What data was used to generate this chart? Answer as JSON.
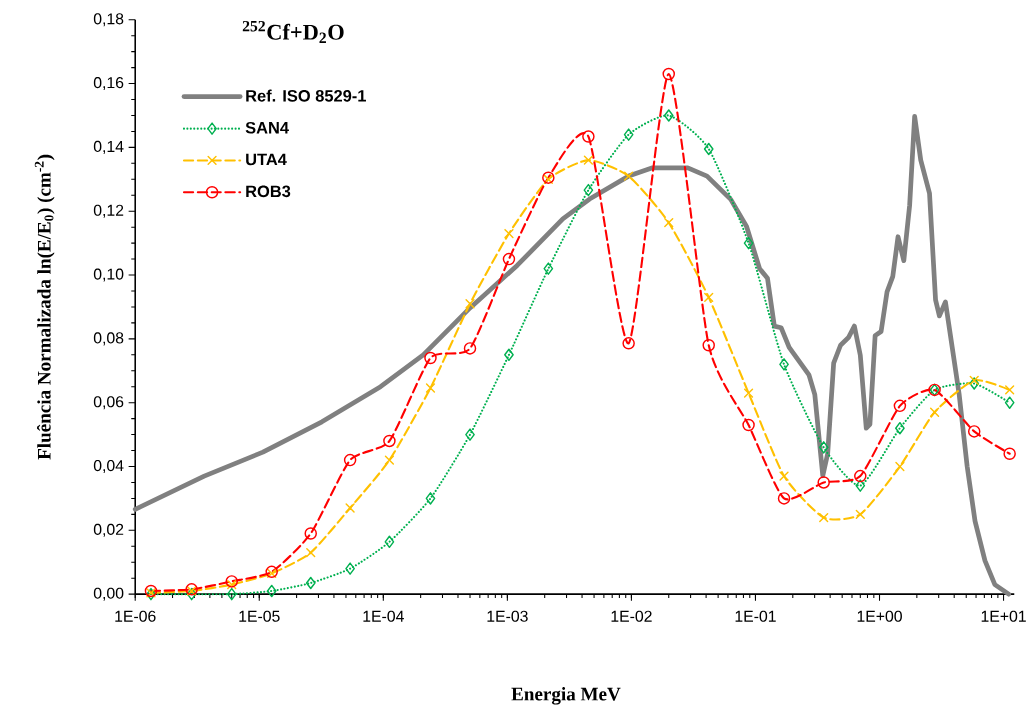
{
  "chart_data": {
    "type": "line",
    "title": "$^{252}$Cf+D$_{2}$O",
    "xlabel": "Energia MeV",
    "ylabel": "Fluência Normalizada ln(E/E$_{0}$) (cm$^{-2}$)",
    "log": "x",
    "grid": false,
    "legend": "top left",
    "xlim": [
      1e-06,
      12.2
    ],
    "ylim": [
      0,
      0.18
    ],
    "xticks": [
      {
        "value": 1e-06,
        "label": "1E-06"
      },
      {
        "value": 1e-05,
        "label": "1E-05"
      },
      {
        "value": 0.0001,
        "label": "1E-04"
      },
      {
        "value": 0.001,
        "label": "1E-03"
      },
      {
        "value": 0.01,
        "label": "1E-02"
      },
      {
        "value": 0.1,
        "label": "1E-01"
      },
      {
        "value": 1,
        "label": "1E+00"
      },
      {
        "value": 10,
        "label": "1E+01"
      }
    ],
    "yticks": [
      {
        "value": 0,
        "label": "0,00"
      },
      {
        "value": 0.02,
        "label": "0,02"
      },
      {
        "value": 0.04,
        "label": "0,04"
      },
      {
        "value": 0.06,
        "label": "0,06"
      },
      {
        "value": 0.08,
        "label": "0,08"
      },
      {
        "value": 0.1,
        "label": "0,10"
      },
      {
        "value": 0.12,
        "label": "0,12"
      },
      {
        "value": 0.14,
        "label": "0,14"
      },
      {
        "value": 0.16,
        "label": "0,16"
      },
      {
        "value": 0.18,
        "label": "0,18"
      }
    ],
    "series": [
      {
        "name": "Ref. ISO 8529-1",
        "color": "#808080",
        "marker": "none",
        "line_style": "solid",
        "x": [
          1e-06,
          3.6e-06,
          1.07e-05,
          3.2e-05,
          9.5e-05,
          0.00021,
          0.0005,
          0.0012,
          0.0028,
          0.0046,
          0.0095,
          0.0148,
          0.0285,
          0.0407,
          0.0632,
          0.0848,
          0.108,
          0.125,
          0.142,
          0.161,
          0.187,
          0.27,
          0.301,
          0.349,
          0.382,
          0.427,
          0.485,
          0.562,
          0.627,
          0.7,
          0.782,
          0.837,
          0.922,
          1.03,
          1.15,
          1.28,
          1.41,
          1.57,
          1.75,
          1.92,
          2.15,
          2.53,
          2.83,
          3.04,
          3.4,
          3.94,
          4.39,
          5.09,
          5.89,
          7.08,
          8.51,
          11.0
        ],
        "values": [
          0.0266,
          0.037,
          0.0445,
          0.054,
          0.065,
          0.075,
          0.0897,
          0.103,
          0.1176,
          0.1238,
          0.131,
          0.1336,
          0.1336,
          0.131,
          0.1237,
          0.1152,
          0.102,
          0.099,
          0.084,
          0.0835,
          0.0773,
          0.0687,
          0.0625,
          0.0371,
          0.044,
          0.0724,
          0.078,
          0.0804,
          0.084,
          0.0749,
          0.052,
          0.0532,
          0.081,
          0.0823,
          0.0947,
          0.0996,
          0.112,
          0.1045,
          0.1219,
          0.1497,
          0.136,
          0.1256,
          0.0922,
          0.0872,
          0.0916,
          0.0749,
          0.0625,
          0.04,
          0.0229,
          0.0105,
          0.003,
          0
        ]
      },
      {
        "name": "SAN4",
        "color": "#00b050",
        "marker": "diamond",
        "line_style": "dotted",
        "x": [
          1.34e-06,
          2.85e-06,
          6e-06,
          1.26e-05,
          2.6e-05,
          5.4e-05,
          0.000112,
          0.00024,
          0.0005,
          0.00103,
          0.00214,
          0.0045,
          0.0095,
          0.02,
          0.042,
          0.088,
          0.17,
          0.355,
          0.7,
          1.46,
          2.78,
          5.8,
          11.2
        ],
        "values": [
          0,
          0,
          0,
          0.001,
          0.0035,
          0.008,
          0.0164,
          0.03,
          0.05,
          0.075,
          0.102,
          0.1266,
          0.144,
          0.15,
          0.1395,
          0.11,
          0.072,
          0.046,
          0.034,
          0.052,
          0.064,
          0.066,
          0.06
        ]
      },
      {
        "name": "UTA4",
        "color": "#ffc000",
        "marker": "cross",
        "line_style": "dashed",
        "x": [
          1.34e-06,
          2.85e-06,
          6e-06,
          1.26e-05,
          2.6e-05,
          5.4e-05,
          0.000112,
          0.00024,
          0.0005,
          0.00103,
          0.00214,
          0.0045,
          0.0095,
          0.02,
          0.042,
          0.088,
          0.17,
          0.355,
          0.7,
          1.46,
          2.78,
          5.8,
          11.2
        ],
        "values": [
          0.0004,
          0.001,
          0.003,
          0.0065,
          0.013,
          0.027,
          0.042,
          0.0646,
          0.091,
          0.113,
          0.13,
          0.136,
          0.131,
          0.1164,
          0.093,
          0.063,
          0.037,
          0.024,
          0.025,
          0.04,
          0.057,
          0.067,
          0.064
        ]
      },
      {
        "name": "ROB3",
        "color": "#ff0000",
        "marker": "circle",
        "line_style": "dashed",
        "x": [
          1.34e-06,
          2.85e-06,
          6e-06,
          1.26e-05,
          2.6e-05,
          5.4e-05,
          0.000112,
          0.00024,
          0.0005,
          0.00103,
          0.00214,
          0.0045,
          0.0095,
          0.02,
          0.042,
          0.088,
          0.17,
          0.355,
          0.7,
          1.46,
          2.78,
          5.8,
          11.2
        ],
        "values": [
          0.001,
          0.0015,
          0.004,
          0.007,
          0.019,
          0.042,
          0.048,
          0.074,
          0.077,
          0.105,
          0.1305,
          0.1434,
          0.0786,
          0.163,
          0.078,
          0.053,
          0.03,
          0.035,
          0.037,
          0.059,
          0.064,
          0.051,
          0.044
        ]
      }
    ]
  }
}
